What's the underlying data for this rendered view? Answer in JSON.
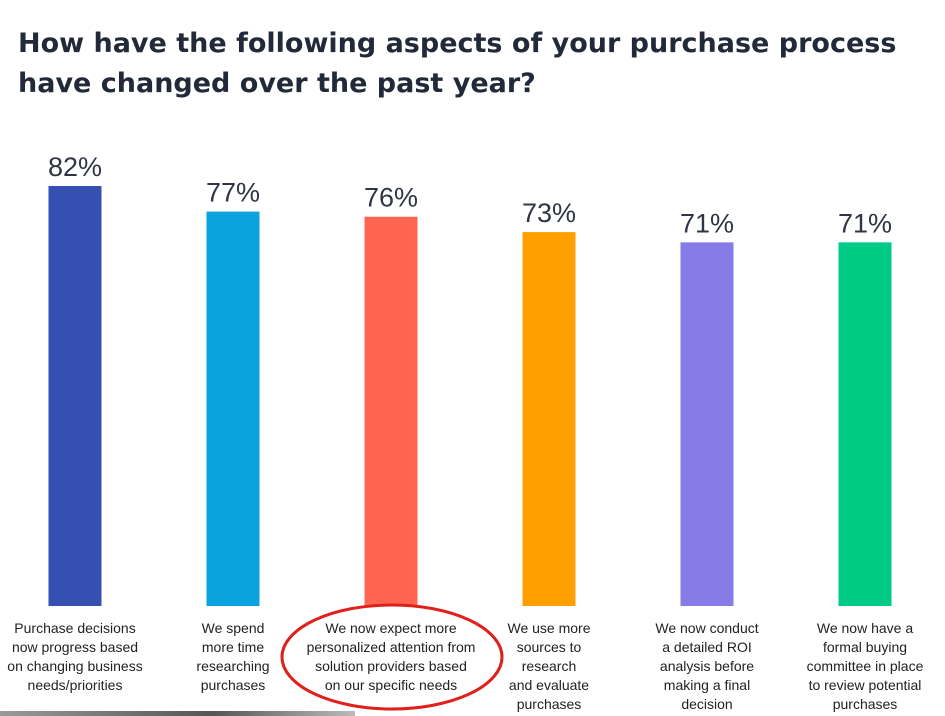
{
  "title": "How have the following aspects of your purchase process have changed over the past year?",
  "chart_data": {
    "type": "bar",
    "title": "How have the following aspects of your purchase process have changed over the past year?",
    "xlabel": "",
    "ylabel": "",
    "ylim": [
      0,
      82
    ],
    "grid": false,
    "legend": "none",
    "value_suffix": "%",
    "categories": [
      [
        "Purchase decisions",
        "now progress based",
        "on changing business",
        "needs/priorities"
      ],
      [
        "We spend",
        "more time",
        "researching",
        "purchases"
      ],
      [
        "We now expect more",
        "personalized attention from",
        "solution providers based",
        "on our specific needs"
      ],
      [
        "We use more",
        "sources to",
        "research",
        "and evaluate",
        "purchases"
      ],
      [
        "We now conduct",
        "a detailed ROI",
        "analysis before",
        "making a final",
        "decision"
      ],
      [
        "We now have a",
        "formal buying",
        "committee in place",
        "to review potential",
        "purchases"
      ]
    ],
    "values": [
      82,
      77,
      76,
      73,
      71,
      71
    ],
    "colors": [
      "#3550b0",
      "#0aa3df",
      "#ff6550",
      "#ffa000",
      "#877be8",
      "#00cb85"
    ],
    "highlighted_index": 2,
    "highlight_color": "#e0201a"
  }
}
